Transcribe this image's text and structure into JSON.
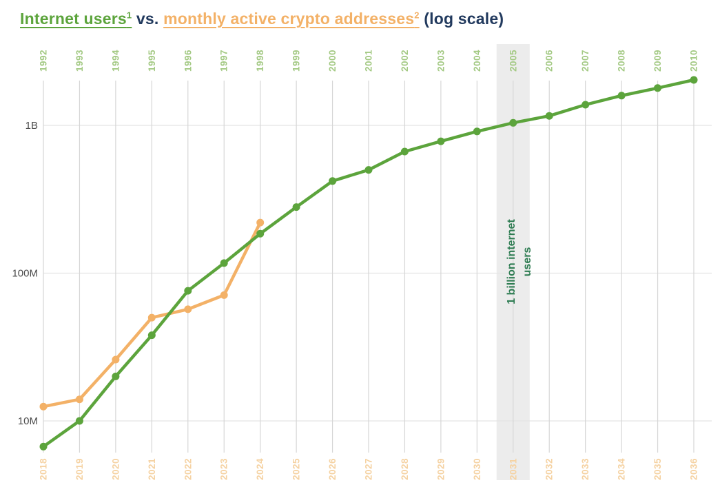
{
  "title": {
    "internet_users": "Internet users",
    "footnote1": "1",
    "vs": " vs. ",
    "crypto": "monthly active crypto addresses",
    "footnote2": "2",
    "log_scale": " (log scale)"
  },
  "colors": {
    "green": "#5ca43c",
    "orange": "#f3b167",
    "navy": "#223a5e",
    "green_axis_label": "#a3c983",
    "orange_axis_label": "#f5d2a2",
    "annotation_green": "#2f7d53",
    "highlight_band": "#ececec",
    "grid_vertical": "#d6d6d6",
    "grid_horizontal": "#e4e4e4",
    "y_label_gray": "#4b4b4b",
    "background": "#ffffff"
  },
  "chart_data": {
    "type": "line",
    "title": "Internet users vs. monthly active crypto addresses (log scale)",
    "log_scale": true,
    "grid": true,
    "legend_position": "none",
    "y_axis": {
      "ticks": [
        {
          "label": "1B",
          "value_millions": 1000
        },
        {
          "label": "100M",
          "value_millions": 100
        },
        {
          "label": "10M",
          "value_millions": 10
        }
      ],
      "range_millions": [
        5,
        2500
      ]
    },
    "top_axis": {
      "years": [
        "1992",
        "1993",
        "1994",
        "1995",
        "1996",
        "1997",
        "1998",
        "1999",
        "2000",
        "2001",
        "2002",
        "2003",
        "2004",
        "2005",
        "2006",
        "2007",
        "2008",
        "2009",
        "2010"
      ],
      "highlight_year": "2005"
    },
    "bottom_axis": {
      "years": [
        "2018",
        "2019",
        "2020",
        "2021",
        "2022",
        "2023",
        "2024",
        "2025",
        "2026",
        "2027",
        "2028",
        "2029",
        "2030",
        "2031",
        "2032",
        "2033",
        "2034",
        "2035",
        "2036"
      ],
      "highlight_year": "2031"
    },
    "annotation": {
      "line1": "1 billion internet",
      "line2": "users"
    },
    "series": [
      {
        "name": "Internet users",
        "color_key": "green",
        "axis": "top",
        "values_millions": [
          6.7,
          10,
          20,
          38,
          76,
          117,
          185,
          280,
          420,
          500,
          665,
          780,
          910,
          1040,
          1160,
          1380,
          1590,
          1790,
          2030
        ]
      },
      {
        "name": "Monthly active crypto addresses",
        "color_key": "orange",
        "axis": "bottom",
        "values_millions": [
          12.5,
          14,
          26,
          50,
          57,
          71,
          220
        ]
      }
    ]
  }
}
